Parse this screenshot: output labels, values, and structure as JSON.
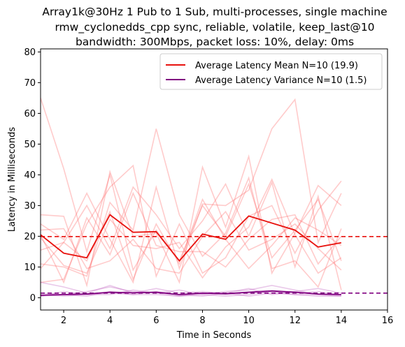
{
  "chart_data": {
    "type": "line",
    "title_lines": [
      "Array1k@30Hz 1 Pub to 1 Sub, multi-processes, single machine",
      "rmw_cyclonedds_cpp sync, reliable, volatile, keep_last@10",
      "bandwidth: 300Mbps, packet loss: 10%, delay: 0ms"
    ],
    "xlabel": "Time in Seconds",
    "ylabel": "Latency in Milliseconds",
    "xlim": [
      1,
      16
    ],
    "ylim": [
      -4,
      81
    ],
    "xticks": [
      2,
      4,
      6,
      8,
      10,
      12,
      14,
      16
    ],
    "yticks": [
      0,
      10,
      20,
      30,
      40,
      50,
      60,
      70,
      80
    ],
    "grid": false,
    "legend_position": "top-right",
    "colors": {
      "mean": "#e8120e",
      "variance": "#800080",
      "run": "#ff6b6b",
      "run_variance": "#c060c0"
    },
    "x": [
      1,
      2,
      3,
      4,
      5,
      6,
      7,
      8,
      9,
      10,
      11,
      12,
      13,
      14
    ],
    "series": [
      {
        "name": "Average Latency Mean N=10 (19.9)",
        "role": "mean",
        "values": [
          20.5,
          14.5,
          13.0,
          27.0,
          21.3,
          21.5,
          12.0,
          20.7,
          19.0,
          26.6,
          24.3,
          22.0,
          16.5,
          17.9
        ]
      },
      {
        "name": "Average Latency Variance N=10 (1.5)",
        "role": "variance",
        "values": [
          0.8,
          1.0,
          1.2,
          1.8,
          1.6,
          1.8,
          1.0,
          1.5,
          1.3,
          1.8,
          2.2,
          1.8,
          1.2,
          1.0
        ]
      }
    ],
    "hlines": [
      {
        "value": 19.9,
        "role": "mean"
      },
      {
        "value": 1.5,
        "role": "variance"
      }
    ],
    "runs": [
      [
        65,
        42,
        15,
        40,
        9,
        22,
        12,
        30,
        20,
        37,
        13,
        22,
        32,
        12
      ],
      [
        27,
        26.5,
        4,
        41,
        20,
        21,
        5,
        42.5,
        23,
        46,
        8,
        21,
        36.5,
        30
      ],
      [
        24,
        19,
        34,
        19,
        5,
        36,
        9.5,
        30.5,
        30,
        35,
        55,
        64.5,
        18,
        34
      ],
      [
        5,
        6,
        24,
        36,
        43,
        7,
        24,
        8,
        13,
        26.5,
        30,
        14.5,
        28.5,
        38
      ],
      [
        15.5,
        18,
        30,
        16,
        36,
        27,
        16,
        25,
        37,
        20,
        37.5,
        10,
        33,
        2.5
      ],
      [
        11,
        10,
        7,
        31,
        22,
        55,
        27,
        13.5,
        21,
        39,
        9.5,
        12,
        3.5,
        22.5
      ],
      [
        9.5,
        18,
        12,
        28,
        6,
        24,
        11,
        32,
        19,
        9.5,
        17,
        26,
        22,
        17
      ],
      [
        19.5,
        10.5,
        8,
        25.5,
        17,
        16,
        18,
        6.5,
        16.5,
        23,
        38.5,
        20.5,
        8,
        13
      ],
      [
        22,
        22.5,
        9.5,
        12,
        19,
        9.5,
        8,
        20,
        28,
        15.5,
        19,
        24,
        16,
        9
      ],
      [
        20.5,
        5,
        26,
        14,
        34,
        17,
        15,
        15,
        10,
        19,
        25.5,
        27,
        11,
        20
      ]
    ],
    "run_variances": [
      [
        5,
        3.5,
        1.5,
        4,
        1.5,
        3,
        1.5,
        2,
        1.5,
        3,
        1,
        2,
        3,
        1.5
      ],
      [
        1.5,
        1,
        2,
        3.5,
        2,
        1.5,
        2.5,
        1,
        2,
        2.5,
        4,
        2.5,
        1,
        1
      ],
      [
        0.5,
        2,
        1,
        1.5,
        1,
        1,
        0.5,
        1.5,
        1,
        1.5,
        2,
        1,
        0.5,
        0.5
      ],
      [
        1,
        0.5,
        1,
        1,
        2.5,
        1.5,
        0.5,
        1,
        0.5,
        1,
        2,
        1.5,
        2,
        1
      ],
      [
        0.5,
        1,
        0.5,
        2,
        1,
        2,
        1,
        0.5,
        1.5,
        0.5,
        1.5,
        1,
        1,
        0.5
      ]
    ]
  }
}
